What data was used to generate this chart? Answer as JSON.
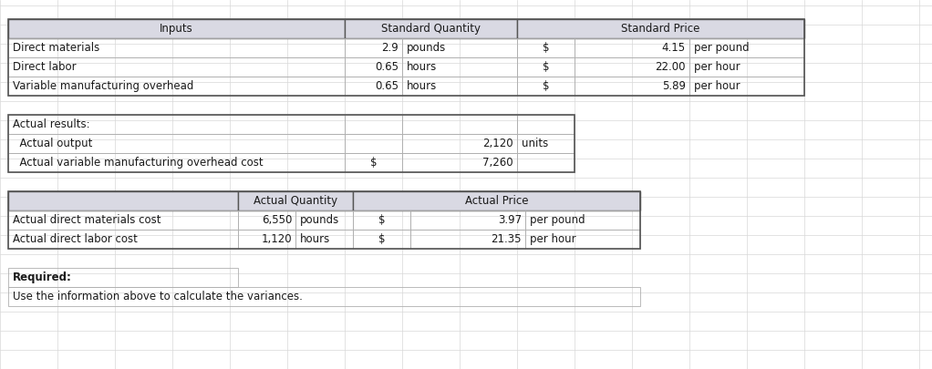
{
  "bg_color": "#ffffff",
  "header_fill": "#d9d9e3",
  "cell_border_color": "#b0b0b0",
  "outer_border_color": "#555555",
  "grid_line_color": "#d8d8d8",
  "font_color": "#000000",
  "table1_header": [
    "Inputs",
    "Standard Quantity",
    "Standard Price"
  ],
  "table1_rows": [
    [
      "Direct materials",
      "2.9",
      "pounds",
      "$",
      "4.15",
      "per pound"
    ],
    [
      "Direct labor",
      "0.65",
      "hours",
      "$",
      "22.00",
      "per hour"
    ],
    [
      "Variable manufacturing overhead",
      "0.65",
      "hours",
      "$",
      "5.89",
      "per hour"
    ]
  ],
  "table2_rows": [
    [
      "Actual results:",
      "",
      "",
      ""
    ],
    [
      "  Actual output",
      "",
      "2,120",
      "units"
    ],
    [
      "  Actual variable manufacturing overhead cost",
      "$",
      "7,260",
      ""
    ]
  ],
  "table3_header": [
    "",
    "Actual Quantity",
    "Actual Price"
  ],
  "table3_rows": [
    [
      "Actual direct materials cost",
      "6,550",
      "pounds",
      "$",
      "3.97",
      "per pound"
    ],
    [
      "Actual direct labor cost",
      "1,120",
      "hours",
      "$",
      "21.35",
      "per hour"
    ]
  ],
  "required_label": "Required:",
  "required_text": "Use the information above to calculate the variances.",
  "figw": 10.22,
  "figh": 4.05,
  "dpi": 100
}
